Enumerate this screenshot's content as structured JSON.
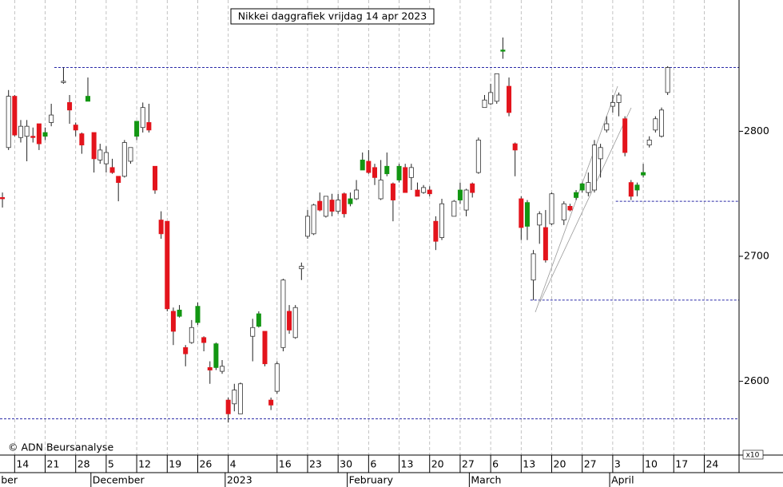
{
  "chart_data": {
    "type": "candlestick",
    "title": "Nikkei daggrafiek vrijdag 14 apr 2023",
    "copyright": "© ADN Beursanalyse",
    "axis_multiplier": "x10",
    "colors": {
      "up": "#ffffff",
      "down": "#e3141c",
      "down_above_previous": "#129612",
      "wick": "#222222",
      "grid": "#b4b4b4",
      "level": "#2a2aa8"
    },
    "open": [
      2747,
      2787,
      2828,
      2795,
      2796,
      2796,
      2806,
      2799,
      2807,
      null,
      2839,
      2823,
      2805,
      2798,
      2828,
      2799,
      2777,
      2774,
      2771,
      2764,
      2764,
      2776,
      2808,
      2803,
      2807,
      2772,
      2729,
      2728,
      2656,
      2657,
      2627,
      2631,
      2660,
      2635,
      2611,
      2630,
      2608,
      2585,
      2582,
      2574,
      null,
      2636,
      2654,
      2640,
      2585,
      2592,
      2627,
      2656,
      2635,
      2690,
      2716,
      2718,
      2744,
      2732,
      2745,
      2736,
      2750,
      2746,
      2746,
      2777,
      2776,
      2771,
      2746,
      2772,
      2758,
      2772,
      2771,
      2763,
      2753,
      2751,
      2753,
      2728,
      2715,
      null,
      2732,
      2753,
      2737,
      2758,
      2767,
      2819,
      2822,
      2824,
      2865,
      2836,
      2790,
      2746,
      2743,
      2681,
      2725,
      2723,
      2726,
      null,
      2729,
      2740,
      2751,
      2758,
      2751,
      2753,
      2778,
      2801,
      2820,
      2823,
      2810,
      2759,
      2757,
      2767,
      2789,
      2801,
      2796,
      2831
    ],
    "high": [
      2751,
      2833,
      2829,
      2809,
      2809,
      2803,
      2806,
      2803,
      2822,
      null,
      2851,
      2829,
      2807,
      2799,
      2843,
      2799,
      2790,
      2788,
      2778,
      2764,
      2793,
      2787,
      2808,
      2823,
      2822,
      2772,
      2736,
      2728,
      2659,
      2661,
      2629,
      2649,
      2663,
      2636,
      2616,
      2631,
      2617,
      2587,
      2598,
      2599,
      null,
      2650,
      2656,
      2640,
      2587,
      2616,
      2682,
      2661,
      2661,
      2695,
      2737,
      2742,
      2751,
      2748,
      2750,
      2750,
      2751,
      2751,
      2761,
      2783,
      2785,
      2774,
      2777,
      2783,
      2759,
      2774,
      2774,
      2774,
      2759,
      2757,
      2756,
      2732,
      2746,
      null,
      2745,
      2759,
      2754,
      2759,
      2795,
      2829,
      2838,
      2846,
      2875,
      2843,
      2791,
      2748,
      2745,
      2705,
      2736,
      2737,
      2751,
      null,
      2744,
      2742,
      2753,
      2759,
      2767,
      2793,
      2790,
      2812,
      2829,
      2831,
      2812,
      2761,
      2759,
      2774,
      2796,
      2812,
      2819,
      2852
    ],
    "low": [
      2739,
      2785,
      2796,
      2791,
      2776,
      2791,
      2785,
      2793,
      2804,
      null,
      2838,
      2806,
      2796,
      2782,
      2824,
      2767,
      2774,
      2767,
      2766,
      2744,
      2763,
      2774,
      2793,
      2799,
      2799,
      2750,
      2714,
      2656,
      2629,
      2651,
      2612,
      2630,
      2645,
      2624,
      2598,
      2609,
      2606,
      2567,
      2576,
      2574,
      null,
      2616,
      2643,
      2612,
      2577,
      2590,
      2624,
      2638,
      2634,
      2681,
      2714,
      2717,
      2736,
      2731,
      2732,
      2734,
      2731,
      2740,
      2745,
      2769,
      2766,
      2757,
      2745,
      2764,
      2728,
      2759,
      2751,
      2753,
      2748,
      2750,
      2748,
      2705,
      2713,
      null,
      2732,
      2742,
      2732,
      2747,
      2766,
      2819,
      2821,
      2822,
      2858,
      2812,
      2764,
      2713,
      2713,
      2665,
      2710,
      2695,
      2725,
      null,
      2725,
      2736,
      2745,
      2751,
      2748,
      2751,
      2763,
      2799,
      2815,
      2812,
      2780,
      2745,
      2748,
      2763,
      2787,
      2799,
      2795,
      2829
    ],
    "close": [
      2746,
      2828,
      2797,
      2804,
      2804,
      2795,
      2790,
      2796,
      2813,
      null,
      2840,
      2817,
      2801,
      2789,
      2824,
      2778,
      2785,
      2783,
      2767,
      2759,
      2791,
      2787,
      2796,
      2819,
      2801,
      2753,
      2718,
      2658,
      2640,
      2652,
      2622,
      2643,
      2647,
      2631,
      2609,
      2611,
      2612,
      2574,
      2593,
      2598,
      null,
      2643,
      2644,
      2614,
      2581,
      2614,
      2681,
      2641,
      2659,
      2692,
      2732,
      2741,
      2737,
      2748,
      2736,
      2745,
      2734,
      2742,
      2753,
      2769,
      2767,
      2763,
      2761,
      2766,
      2745,
      2761,
      2751,
      2771,
      2748,
      2755,
      2750,
      2712,
      2742,
      null,
      2744,
      2745,
      2753,
      2751,
      2793,
      2825,
      2831,
      2846,
      2864,
      2815,
      2785,
      2723,
      2724,
      2702,
      2734,
      2697,
      2750,
      null,
      2742,
      2737,
      2747,
      2753,
      2759,
      2789,
      2787,
      2806,
      2823,
      2829,
      2783,
      2748,
      2753,
      2765,
      2793,
      2810,
      2817,
      2851
    ],
    "levels": [
      {
        "value": 2851,
        "start": 9
      },
      {
        "value": 2570,
        "start": 0
      },
      {
        "value": 2665,
        "start": 87
      },
      {
        "value": 2744,
        "start": 101
      }
    ],
    "xlim": [
      -0.4,
      120.7
    ],
    "xticks": [
      {
        "value": 2,
        "label": "14"
      },
      {
        "value": 7,
        "label": "21"
      },
      {
        "value": 12,
        "label": "28"
      },
      {
        "value": 17,
        "label": "5"
      },
      {
        "value": 22,
        "label": "12"
      },
      {
        "value": 27,
        "label": "19"
      },
      {
        "value": 32,
        "label": "26"
      },
      {
        "value": 37,
        "label": "4"
      },
      {
        "value": 45,
        "label": "16"
      },
      {
        "value": 50,
        "label": "23"
      },
      {
        "value": 55,
        "label": "30"
      },
      {
        "value": 60,
        "label": "6"
      },
      {
        "value": 65,
        "label": "13"
      },
      {
        "value": 70,
        "label": "20"
      },
      {
        "value": 75,
        "label": "27"
      },
      {
        "value": 80,
        "label": "6"
      },
      {
        "value": 85,
        "label": "13"
      },
      {
        "value": 90,
        "label": "20"
      },
      {
        "value": 95,
        "label": "27"
      },
      {
        "value": 100,
        "label": "3"
      },
      {
        "value": 105,
        "label": "10"
      },
      {
        "value": 110,
        "label": "17"
      },
      {
        "value": 115,
        "label": "24"
      }
    ],
    "months": [
      {
        "value": 0,
        "label": "ber"
      },
      {
        "value": 15,
        "label": "December"
      },
      {
        "value": 37,
        "label": "2023"
      },
      {
        "value": 57,
        "label": "February"
      },
      {
        "value": 77,
        "label": "March"
      },
      {
        "value": 100,
        "label": "April"
      }
    ],
    "ylim": [
      2541,
      2905
    ],
    "yticks": [
      2600,
      2700,
      2800
    ],
    "grid": true
  }
}
